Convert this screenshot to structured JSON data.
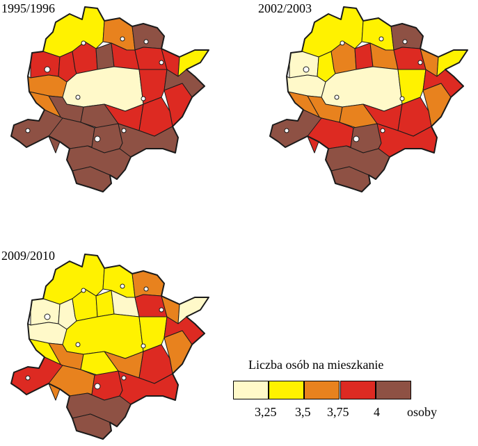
{
  "maps": [
    {
      "label": "1995/1996"
    },
    {
      "label": "2002/2003"
    },
    {
      "label": "2009/2010"
    }
  ],
  "legend": {
    "title": "Liczba osób na mieszkanie",
    "ticks": [
      "3,25",
      "3,5",
      "3,75",
      "4"
    ],
    "unit": "osoby",
    "classes": [
      {
        "color": "#FFF9C9"
      },
      {
        "color": "#FFF200"
      },
      {
        "color": "#E8821E"
      },
      {
        "color": "#DD2A22"
      },
      {
        "color": "#8E5144"
      }
    ]
  }
}
